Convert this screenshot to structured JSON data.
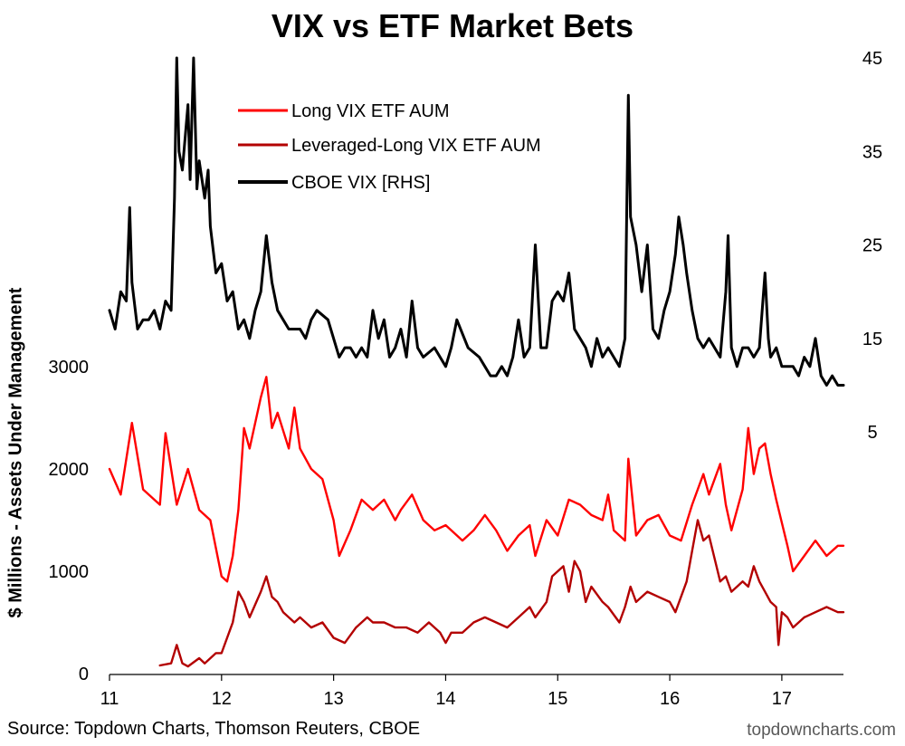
{
  "chart_data": {
    "type": "line",
    "title": "VIX vs ETF Market Bets",
    "ylabel": "$ Millions - Assets Under Management",
    "source": "Source: Topdown Charts, Thomson Reuters, CBOE",
    "brand": "topdowncharts.com",
    "x_ticks": [
      "11",
      "12",
      "13",
      "14",
      "15",
      "16",
      "17"
    ],
    "xlim": [
      2011,
      2017.55
    ],
    "ylim_left": [
      0,
      3000
    ],
    "left_ticks": [
      "0",
      "1000",
      "2000",
      "3000"
    ],
    "ylim_right": [
      -10,
      45
    ],
    "right_ticks": [
      "5",
      "15",
      "25",
      "35",
      "45"
    ],
    "legend_position": "top-left",
    "series": [
      {
        "name": "Long VIX ETF AUM",
        "axis": "left",
        "color": "#ff0000",
        "points": [
          [
            2011.0,
            2000
          ],
          [
            2011.1,
            1750
          ],
          [
            2011.2,
            2450
          ],
          [
            2011.3,
            1800
          ],
          [
            2011.45,
            1650
          ],
          [
            2011.5,
            2350
          ],
          [
            2011.6,
            1650
          ],
          [
            2011.7,
            2000
          ],
          [
            2011.8,
            1600
          ],
          [
            2011.9,
            1500
          ],
          [
            2012.0,
            950
          ],
          [
            2012.05,
            900
          ],
          [
            2012.1,
            1150
          ],
          [
            2012.15,
            1600
          ],
          [
            2012.2,
            2400
          ],
          [
            2012.25,
            2200
          ],
          [
            2012.35,
            2700
          ],
          [
            2012.4,
            2900
          ],
          [
            2012.45,
            2400
          ],
          [
            2012.5,
            2550
          ],
          [
            2012.6,
            2200
          ],
          [
            2012.65,
            2600
          ],
          [
            2012.7,
            2200
          ],
          [
            2012.8,
            2000
          ],
          [
            2012.9,
            1900
          ],
          [
            2013.0,
            1500
          ],
          [
            2013.05,
            1150
          ],
          [
            2013.15,
            1400
          ],
          [
            2013.25,
            1700
          ],
          [
            2013.35,
            1600
          ],
          [
            2013.45,
            1700
          ],
          [
            2013.55,
            1500
          ],
          [
            2013.6,
            1600
          ],
          [
            2013.7,
            1750
          ],
          [
            2013.8,
            1500
          ],
          [
            2013.9,
            1400
          ],
          [
            2014.0,
            1450
          ],
          [
            2014.15,
            1300
          ],
          [
            2014.25,
            1400
          ],
          [
            2014.35,
            1550
          ],
          [
            2014.45,
            1400
          ],
          [
            2014.55,
            1200
          ],
          [
            2014.65,
            1350
          ],
          [
            2014.75,
            1450
          ],
          [
            2014.8,
            1150
          ],
          [
            2014.9,
            1500
          ],
          [
            2015.0,
            1350
          ],
          [
            2015.1,
            1700
          ],
          [
            2015.2,
            1650
          ],
          [
            2015.3,
            1550
          ],
          [
            2015.4,
            1500
          ],
          [
            2015.45,
            1750
          ],
          [
            2015.5,
            1400
          ],
          [
            2015.6,
            1300
          ],
          [
            2015.63,
            2100
          ],
          [
            2015.7,
            1350
          ],
          [
            2015.8,
            1500
          ],
          [
            2015.9,
            1550
          ],
          [
            2016.0,
            1350
          ],
          [
            2016.1,
            1300
          ],
          [
            2016.2,
            1650
          ],
          [
            2016.3,
            1950
          ],
          [
            2016.35,
            1750
          ],
          [
            2016.45,
            2050
          ],
          [
            2016.5,
            1650
          ],
          [
            2016.55,
            1400
          ],
          [
            2016.65,
            1800
          ],
          [
            2016.7,
            2400
          ],
          [
            2016.75,
            1950
          ],
          [
            2016.8,
            2200
          ],
          [
            2016.85,
            2250
          ],
          [
            2016.9,
            1950
          ],
          [
            2016.95,
            1700
          ],
          [
            2017.05,
            1250
          ],
          [
            2017.1,
            1000
          ],
          [
            2017.2,
            1150
          ],
          [
            2017.3,
            1300
          ],
          [
            2017.4,
            1150
          ],
          [
            2017.5,
            1250
          ],
          [
            2017.55,
            1250
          ]
        ]
      },
      {
        "name": "Leveraged-Long VIX ETF AUM",
        "axis": "left",
        "color": "#b30000",
        "points": [
          [
            2011.45,
            80
          ],
          [
            2011.55,
            100
          ],
          [
            2011.6,
            280
          ],
          [
            2011.65,
            100
          ],
          [
            2011.7,
            70
          ],
          [
            2011.8,
            150
          ],
          [
            2011.85,
            100
          ],
          [
            2011.95,
            200
          ],
          [
            2012.0,
            200
          ],
          [
            2012.1,
            500
          ],
          [
            2012.15,
            800
          ],
          [
            2012.2,
            700
          ],
          [
            2012.25,
            550
          ],
          [
            2012.35,
            800
          ],
          [
            2012.4,
            950
          ],
          [
            2012.45,
            750
          ],
          [
            2012.5,
            700
          ],
          [
            2012.55,
            600
          ],
          [
            2012.65,
            500
          ],
          [
            2012.7,
            550
          ],
          [
            2012.8,
            450
          ],
          [
            2012.9,
            500
          ],
          [
            2013.0,
            350
          ],
          [
            2013.1,
            300
          ],
          [
            2013.2,
            450
          ],
          [
            2013.3,
            550
          ],
          [
            2013.35,
            500
          ],
          [
            2013.45,
            500
          ],
          [
            2013.55,
            450
          ],
          [
            2013.65,
            450
          ],
          [
            2013.75,
            400
          ],
          [
            2013.85,
            500
          ],
          [
            2013.95,
            400
          ],
          [
            2014.0,
            300
          ],
          [
            2014.05,
            400
          ],
          [
            2014.15,
            400
          ],
          [
            2014.25,
            500
          ],
          [
            2014.35,
            550
          ],
          [
            2014.45,
            500
          ],
          [
            2014.55,
            450
          ],
          [
            2014.65,
            550
          ],
          [
            2014.75,
            650
          ],
          [
            2014.8,
            550
          ],
          [
            2014.9,
            700
          ],
          [
            2014.95,
            950
          ],
          [
            2015.05,
            1050
          ],
          [
            2015.1,
            800
          ],
          [
            2015.15,
            1100
          ],
          [
            2015.2,
            1000
          ],
          [
            2015.25,
            700
          ],
          [
            2015.3,
            850
          ],
          [
            2015.4,
            700
          ],
          [
            2015.45,
            650
          ],
          [
            2015.55,
            500
          ],
          [
            2015.6,
            650
          ],
          [
            2015.65,
            850
          ],
          [
            2015.7,
            700
          ],
          [
            2015.8,
            800
          ],
          [
            2015.9,
            750
          ],
          [
            2016.0,
            700
          ],
          [
            2016.05,
            600
          ],
          [
            2016.15,
            900
          ],
          [
            2016.2,
            1200
          ],
          [
            2016.25,
            1500
          ],
          [
            2016.3,
            1300
          ],
          [
            2016.35,
            1350
          ],
          [
            2016.45,
            900
          ],
          [
            2016.5,
            950
          ],
          [
            2016.55,
            800
          ],
          [
            2016.6,
            850
          ],
          [
            2016.65,
            900
          ],
          [
            2016.7,
            850
          ],
          [
            2016.75,
            1050
          ],
          [
            2016.8,
            900
          ],
          [
            2016.85,
            800
          ],
          [
            2016.9,
            700
          ],
          [
            2016.95,
            650
          ],
          [
            2016.97,
            280
          ],
          [
            2017.0,
            600
          ],
          [
            2017.05,
            550
          ],
          [
            2017.1,
            450
          ],
          [
            2017.2,
            550
          ],
          [
            2017.3,
            600
          ],
          [
            2017.4,
            650
          ],
          [
            2017.5,
            600
          ],
          [
            2017.55,
            600
          ]
        ]
      },
      {
        "name": "CBOE VIX [RHS]",
        "axis": "right",
        "color": "#000000",
        "points": [
          [
            2011.0,
            18
          ],
          [
            2011.05,
            16
          ],
          [
            2011.1,
            20
          ],
          [
            2011.15,
            19
          ],
          [
            2011.18,
            29
          ],
          [
            2011.2,
            21
          ],
          [
            2011.25,
            16
          ],
          [
            2011.3,
            17
          ],
          [
            2011.35,
            17
          ],
          [
            2011.4,
            18
          ],
          [
            2011.45,
            16
          ],
          [
            2011.5,
            19
          ],
          [
            2011.55,
            18
          ],
          [
            2011.58,
            30
          ],
          [
            2011.6,
            45
          ],
          [
            2011.62,
            35
          ],
          [
            2011.65,
            33
          ],
          [
            2011.7,
            40
          ],
          [
            2011.72,
            32
          ],
          [
            2011.75,
            45
          ],
          [
            2011.78,
            31
          ],
          [
            2011.8,
            34
          ],
          [
            2011.85,
            30
          ],
          [
            2011.88,
            33
          ],
          [
            2011.9,
            27
          ],
          [
            2011.95,
            22
          ],
          [
            2012.0,
            23
          ],
          [
            2012.05,
            19
          ],
          [
            2012.1,
            20
          ],
          [
            2012.15,
            16
          ],
          [
            2012.2,
            17
          ],
          [
            2012.25,
            15
          ],
          [
            2012.3,
            18
          ],
          [
            2012.35,
            20
          ],
          [
            2012.4,
            26
          ],
          [
            2012.45,
            21
          ],
          [
            2012.5,
            18
          ],
          [
            2012.55,
            17
          ],
          [
            2012.6,
            16
          ],
          [
            2012.7,
            16
          ],
          [
            2012.75,
            15
          ],
          [
            2012.8,
            17
          ],
          [
            2012.85,
            18
          ],
          [
            2012.95,
            17
          ],
          [
            2013.0,
            15
          ],
          [
            2013.05,
            13
          ],
          [
            2013.1,
            14
          ],
          [
            2013.15,
            14
          ],
          [
            2013.2,
            13
          ],
          [
            2013.25,
            14
          ],
          [
            2013.3,
            13
          ],
          [
            2013.35,
            18
          ],
          [
            2013.4,
            15
          ],
          [
            2013.45,
            17
          ],
          [
            2013.5,
            13
          ],
          [
            2013.55,
            14
          ],
          [
            2013.6,
            16
          ],
          [
            2013.65,
            13
          ],
          [
            2013.7,
            19
          ],
          [
            2013.75,
            14
          ],
          [
            2013.8,
            13
          ],
          [
            2013.9,
            14
          ],
          [
            2014.0,
            12
          ],
          [
            2014.05,
            14
          ],
          [
            2014.1,
            17
          ],
          [
            2014.2,
            14
          ],
          [
            2014.3,
            13
          ],
          [
            2014.35,
            12
          ],
          [
            2014.4,
            11
          ],
          [
            2014.45,
            11
          ],
          [
            2014.5,
            12
          ],
          [
            2014.55,
            11
          ],
          [
            2014.6,
            13
          ],
          [
            2014.65,
            17
          ],
          [
            2014.7,
            13
          ],
          [
            2014.75,
            14
          ],
          [
            2014.8,
            25
          ],
          [
            2014.85,
            14
          ],
          [
            2014.9,
            14
          ],
          [
            2014.95,
            19
          ],
          [
            2015.0,
            20
          ],
          [
            2015.05,
            19
          ],
          [
            2015.1,
            22
          ],
          [
            2015.15,
            16
          ],
          [
            2015.2,
            15
          ],
          [
            2015.25,
            14
          ],
          [
            2015.3,
            12
          ],
          [
            2015.35,
            15
          ],
          [
            2015.4,
            13
          ],
          [
            2015.45,
            14
          ],
          [
            2015.5,
            13
          ],
          [
            2015.55,
            12
          ],
          [
            2015.6,
            15
          ],
          [
            2015.63,
            41
          ],
          [
            2015.65,
            28
          ],
          [
            2015.7,
            25
          ],
          [
            2015.75,
            20
          ],
          [
            2015.8,
            25
          ],
          [
            2015.85,
            16
          ],
          [
            2015.9,
            15
          ],
          [
            2015.95,
            18
          ],
          [
            2016.0,
            20
          ],
          [
            2016.05,
            24
          ],
          [
            2016.08,
            28
          ],
          [
            2016.12,
            25
          ],
          [
            2016.15,
            22
          ],
          [
            2016.2,
            18
          ],
          [
            2016.25,
            15
          ],
          [
            2016.3,
            14
          ],
          [
            2016.35,
            15
          ],
          [
            2016.4,
            14
          ],
          [
            2016.45,
            13
          ],
          [
            2016.5,
            20
          ],
          [
            2016.52,
            26
          ],
          [
            2016.55,
            14
          ],
          [
            2016.6,
            12
          ],
          [
            2016.65,
            14
          ],
          [
            2016.7,
            14
          ],
          [
            2016.75,
            13
          ],
          [
            2016.8,
            14
          ],
          [
            2016.85,
            22
          ],
          [
            2016.88,
            15
          ],
          [
            2016.9,
            13
          ],
          [
            2016.95,
            14
          ],
          [
            2017.0,
            12
          ],
          [
            2017.05,
            12
          ],
          [
            2017.1,
            12
          ],
          [
            2017.15,
            11
          ],
          [
            2017.2,
            13
          ],
          [
            2017.25,
            12
          ],
          [
            2017.3,
            15
          ],
          [
            2017.35,
            11
          ],
          [
            2017.4,
            10
          ],
          [
            2017.45,
            11
          ],
          [
            2017.5,
            10
          ],
          [
            2017.55,
            10
          ]
        ]
      }
    ]
  }
}
